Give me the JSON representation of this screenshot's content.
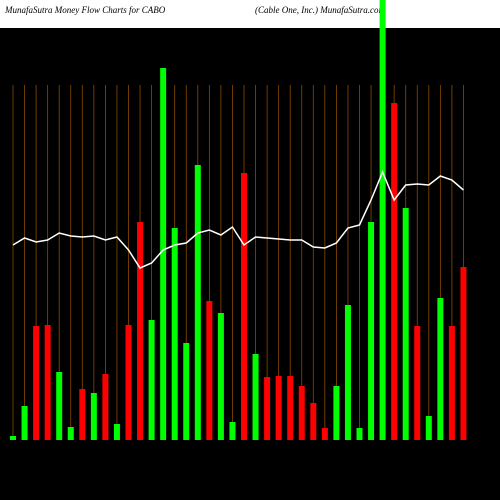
{
  "chart_data": {
    "type": "bar",
    "title": "MunafaSutra  Money Flow  Charts for CABO",
    "subtitle": "(Cable   One,  Inc.) MunafaSutra.com",
    "values": [
      4,
      34,
      114,
      115,
      68,
      13,
      51,
      47,
      66,
      16,
      115,
      218,
      120,
      372,
      212,
      97,
      275,
      139,
      127,
      18,
      267,
      86,
      63,
      64,
      64,
      54,
      37,
      12,
      54,
      135,
      12,
      218,
      440,
      337,
      232,
      114,
      24,
      142,
      114,
      173
    ],
    "colors": [
      "#00ff00",
      "#00ff00",
      "#ff0000",
      "#ff0000",
      "#00ff00",
      "#00ff00",
      "#ff0000",
      "#00ff00",
      "#ff0000",
      "#00ff00",
      "#ff0000",
      "#ff0000",
      "#00ff00",
      "#00ff00",
      "#00ff00",
      "#00ff00",
      "#00ff00",
      "#ff0000",
      "#00ff00",
      "#00ff00",
      "#ff0000",
      "#00ff00",
      "#ff0000",
      "#ff0000",
      "#ff0000",
      "#ff0000",
      "#ff0000",
      "#ff0000",
      "#00ff00",
      "#00ff00",
      "#00ff00",
      "#00ff00",
      "#00ff00",
      "#ff0000",
      "#00ff00",
      "#ff0000",
      "#00ff00",
      "#00ff00",
      "#ff0000",
      "#ff0000"
    ],
    "line_values": [
      195,
      202,
      198,
      200,
      207,
      204,
      203,
      204,
      200,
      203,
      190,
      172,
      177,
      190,
      195,
      197,
      207,
      210,
      205,
      213,
      195,
      203,
      202,
      201,
      200,
      200,
      193,
      192,
      197,
      212,
      215,
      240,
      268,
      240,
      255,
      256,
      255,
      264,
      260,
      250
    ],
    "line_color": "#ffffff",
    "ylim": [
      0,
      440
    ]
  }
}
